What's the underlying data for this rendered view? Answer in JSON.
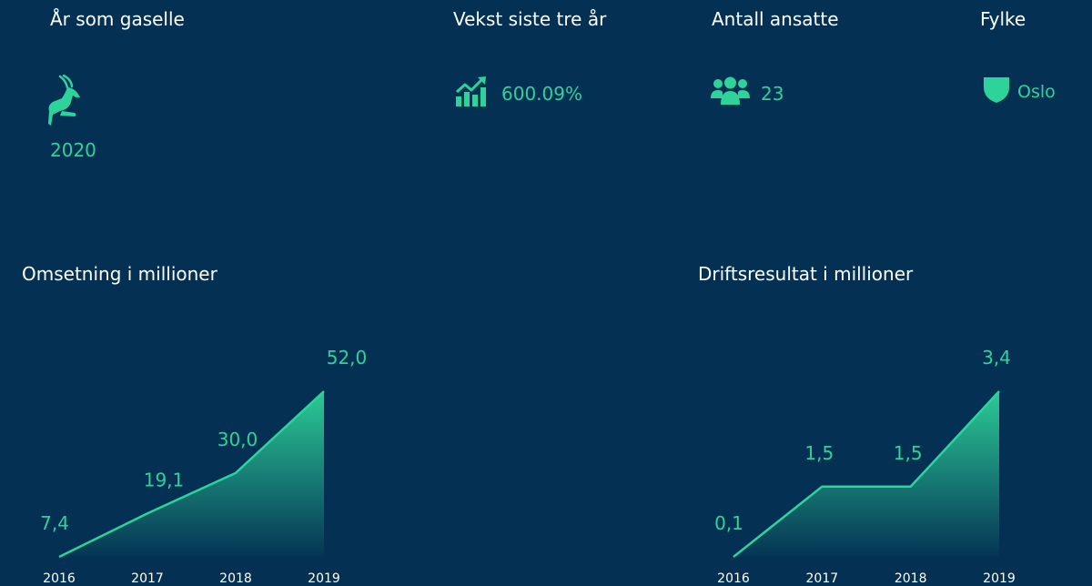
{
  "stats": {
    "gazelle": {
      "label": "År som gaselle",
      "value": "2020",
      "icon": "gazelle-icon"
    },
    "growth": {
      "label": "Vekst siste tre år",
      "value": "600.09%",
      "icon": "growth-chart-icon"
    },
    "employees": {
      "label": "Antall ansatte",
      "value": "23",
      "icon": "people-icon"
    },
    "county": {
      "label": "Fylke",
      "value": "Oslo",
      "icon": "shield-icon"
    }
  },
  "colors": {
    "background": "#043153",
    "accent": "#2ed39a",
    "text": "#ffffff"
  },
  "chart_data": [
    {
      "type": "area",
      "title": "Omsetning i millioner",
      "categories": [
        "2016",
        "2017",
        "2018",
        "2019"
      ],
      "values": [
        7.4,
        19.1,
        30.0,
        52.0
      ],
      "data_labels": [
        "7,4",
        "19,1",
        "30,0",
        "52,0"
      ],
      "grid": false,
      "legend": "none"
    },
    {
      "type": "area",
      "title": "Driftsresultat i millioner",
      "categories": [
        "2016",
        "2017",
        "2018",
        "2019"
      ],
      "values": [
        0.1,
        1.5,
        1.5,
        3.4
      ],
      "data_labels": [
        "0,1",
        "1,5",
        "1,5",
        "3,4"
      ],
      "grid": false,
      "legend": "none"
    }
  ]
}
